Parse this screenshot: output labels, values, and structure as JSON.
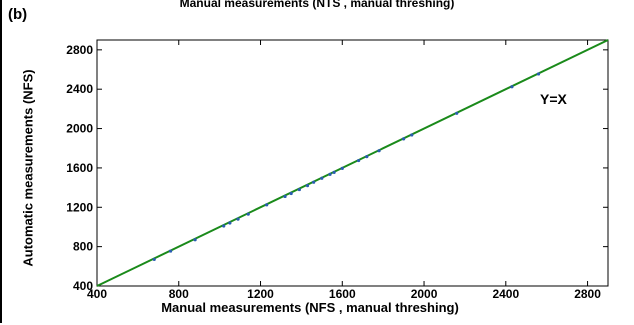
{
  "top_title_text": "Manual measurements (NTS , manual threshing)",
  "chart_data": {
    "type": "scatter",
    "panel_label": "(b)",
    "xlabel": "Manual measurements (NFS , manual threshing)",
    "ylabel": "Automatic measurements (NFS)",
    "annotation": "Y=X",
    "xlim": [
      400,
      2900
    ],
    "ylim": [
      400,
      2900
    ],
    "xticks": [
      "400",
      "800",
      "1200",
      "1600",
      "2000",
      "2400",
      "2800"
    ],
    "yticks": [
      "400",
      "800",
      "1200",
      "1600",
      "2000",
      "2400",
      "2800"
    ],
    "grid": false,
    "colors": {
      "line": "#1a8a1a",
      "points": "#2a5db0"
    },
    "series": [
      {
        "values": [
          [
            680,
            670
          ],
          [
            760,
            755
          ],
          [
            880,
            870
          ],
          [
            1020,
            1010
          ],
          [
            1050,
            1040
          ],
          [
            1090,
            1080
          ],
          [
            1140,
            1130
          ],
          [
            1230,
            1225
          ],
          [
            1320,
            1310
          ],
          [
            1350,
            1340
          ],
          [
            1390,
            1380
          ],
          [
            1430,
            1420
          ],
          [
            1460,
            1455
          ],
          [
            1500,
            1495
          ],
          [
            1540,
            1535
          ],
          [
            1560,
            1555
          ],
          [
            1600,
            1595
          ],
          [
            1680,
            1675
          ],
          [
            1720,
            1715
          ],
          [
            1780,
            1775
          ],
          [
            1900,
            1895
          ],
          [
            1940,
            1935
          ],
          [
            2160,
            2155
          ],
          [
            2430,
            2425
          ],
          [
            2560,
            2555
          ]
        ]
      }
    ],
    "reference_line": {
      "from": [
        400,
        400
      ],
      "to": [
        2900,
        2900
      ]
    }
  }
}
